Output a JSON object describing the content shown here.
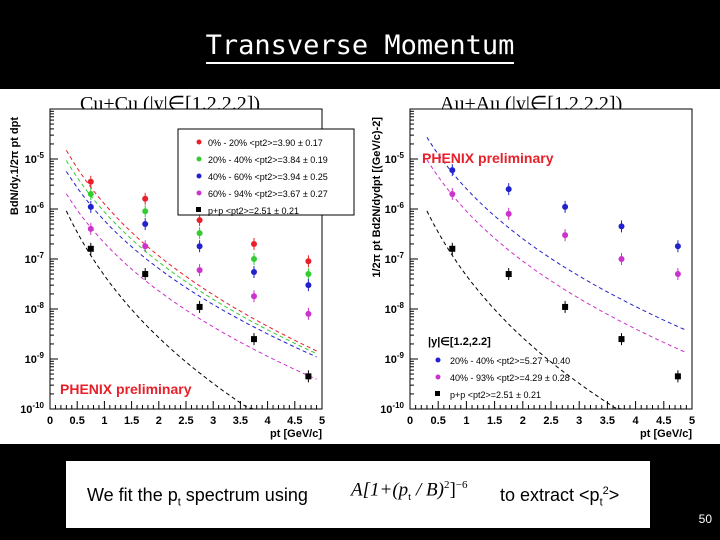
{
  "slide": {
    "title": "Transverse Momentum",
    "number": "50",
    "left_heading": "Cu+Cu (|y|∈[1.2,2.2])",
    "right_heading": "Au+Au (|y|∈[1.2,2.2])",
    "bottom_text_1": "We fit the p",
    "bottom_text_1_sub": "t",
    "bottom_text_1_tail": " spectrum using",
    "formula_A": "A[1+(",
    "formula_p": "p",
    "formula_t": "t",
    "formula_B": " / B)",
    "formula_sq": "2",
    "formula_close": "]",
    "formula_exp": "−6",
    "bottom_text_2": "to extract <p",
    "bottom_text_2_sub": "t",
    "bottom_text_2_sup": "2",
    "bottom_text_2_tail": ">"
  },
  "chart_data": [
    {
      "type": "scatter",
      "title": "Cu+Cu (|y|∈[1.2,2.2])",
      "xlabel": "pt [GeV/c]",
      "ylabel": "BdN/dy.1/2π pt dpt",
      "xlim": [
        0,
        5
      ],
      "ylim": [
        1e-10,
        0.0001
      ],
      "yscale": "log",
      "x_ticks": [
        "0",
        "0.5",
        "1",
        "1.5",
        "2",
        "2.5",
        "3",
        "3.5",
        "4",
        "4.5",
        "5"
      ],
      "y_ticks": [
        "10-10",
        "10-9",
        "10-8",
        "10-7",
        "10-6",
        "10-5"
      ],
      "annotation": "PHENIX preliminary",
      "legend_position": "top-right",
      "x": [
        0.75,
        1.25,
        1.75,
        2.25,
        2.75,
        3.25,
        3.75,
        4.25,
        4.75
      ],
      "series": [
        {
          "name": "0% - 20% <pt2>=3.90 ± 0.17",
          "color": "#e8202a",
          "x": [
            0.75,
            1.75,
            2.75,
            3.75,
            4.75
          ],
          "values": [
            3.5e-06,
            1.6e-06,
            6e-07,
            2e-07,
            9e-08
          ],
          "fit": [
            4e-05,
            -2.2
          ]
        },
        {
          "name": "20% - 40% <pt2>=3.84 ± 0.19",
          "color": "#33cc33",
          "x": [
            0.75,
            1.75,
            2.75,
            3.75,
            4.75
          ],
          "values": [
            2e-06,
            9e-07,
            3.3e-07,
            1e-07,
            5e-08
          ],
          "fit": [
            2.4e-05,
            -2.1
          ]
        },
        {
          "name": "40% - 60% <pt2>=3.94 ± 0.25",
          "color": "#2222cc",
          "x": [
            0.75,
            1.75,
            2.75,
            3.75,
            4.75
          ],
          "values": [
            1.1e-06,
            5e-07,
            1.8e-07,
            5.5e-08,
            3e-08
          ],
          "fit": [
            1.4e-05,
            -2.0
          ]
        },
        {
          "name": "60% - 94% <pt2>=3.67 ± 0.27",
          "color": "#cc33cc",
          "x": [
            0.75,
            1.75,
            2.75,
            3.75,
            4.75
          ],
          "values": [
            4e-07,
            1.8e-07,
            6e-08,
            1.8e-08,
            8e-09
          ],
          "fit": [
            5e-06,
            -2.0
          ]
        },
        {
          "name": "p+p <pt2>=2.51 ± 0.21",
          "color": "#000000",
          "x": [
            0.75,
            1.75,
            2.75,
            3.75,
            4.75
          ],
          "values": [
            1.6e-07,
            5e-08,
            1.1e-08,
            2.5e-09,
            4.5e-10
          ],
          "fit": [
            3e-06,
            -2.7
          ]
        }
      ]
    },
    {
      "type": "scatter",
      "title": "Au+Au (|y|∈[1.2,2.2])",
      "xlabel": "pt [GeV/c]",
      "ylabel": "1/2π pt Bd2N/dydpt [(GeV/c)-2]",
      "xlim": [
        0,
        5
      ],
      "ylim": [
        1e-10,
        0.0001
      ],
      "yscale": "log",
      "x_ticks": [
        "0",
        "0.5",
        "1",
        "1.5",
        "2",
        "2.5",
        "3",
        "3.5",
        "4",
        "4.5",
        "5"
      ],
      "y_ticks": [
        "10-10",
        "10-9",
        "10-8",
        "10-7",
        "10-6",
        "10-5"
      ],
      "annotation": "PHENIX preliminary",
      "legend_title": "|y|∈[1.2,2.2]",
      "legend_position": "bottom-right",
      "series": [
        {
          "name": "20% - 40% <pt2>=5.27 + 0.40",
          "color": "#2222cc",
          "x": [
            0.75,
            1.75,
            2.75,
            3.75,
            4.75
          ],
          "values": [
            6e-06,
            2.5e-06,
            1.1e-06,
            4.5e-07,
            1.8e-07
          ],
          "fit": [
            7e-05,
            -2.1
          ]
        },
        {
          "name": "40% - 93% <pt2>=4.29 ± 0.28",
          "color": "#cc33cc",
          "x": [
            0.75,
            1.75,
            2.75,
            3.75,
            4.75
          ],
          "values": [
            2e-06,
            8e-07,
            3e-07,
            1e-07,
            5e-08
          ],
          "fit": [
            2.5e-05,
            -2.1
          ]
        },
        {
          "name": "p+p <pt2>=2.51 ± 0.21",
          "color": "#000000",
          "x": [
            0.75,
            1.75,
            2.75,
            3.75,
            4.75
          ],
          "values": [
            1.6e-07,
            5e-08,
            1.1e-08,
            2.5e-09,
            4.5e-10
          ],
          "fit": [
            3e-06,
            -2.7
          ]
        }
      ]
    }
  ]
}
